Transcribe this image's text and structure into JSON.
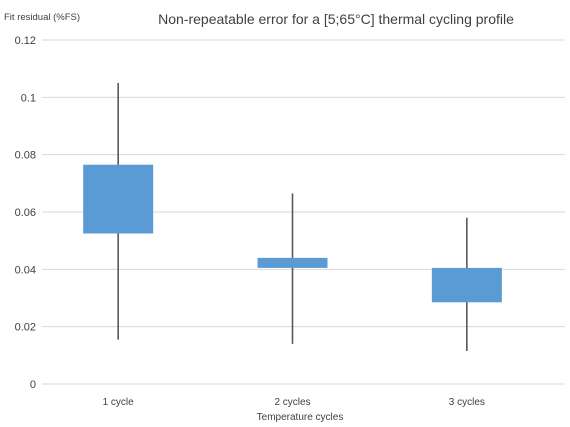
{
  "chart_data": {
    "type": "box",
    "title": "Non-repeatable error for a [5;65°C] thermal cycling profile",
    "ylabel": "Fit residual (%FS)",
    "xlabel": "Temperature cycles",
    "ylim": [
      0,
      0.12
    ],
    "yticks": [
      {
        "value": 0,
        "label": "0"
      },
      {
        "value": 0.02,
        "label": "0.02"
      },
      {
        "value": 0.04,
        "label": "0.04"
      },
      {
        "value": 0.06,
        "label": "0.06"
      },
      {
        "value": 0.08,
        "label": "0.08"
      },
      {
        "value": 0.1,
        "label": "0.1"
      },
      {
        "value": 0.12,
        "label": "0.12"
      }
    ],
    "grid": true,
    "categories": [
      "1 cycle",
      "2 cycles",
      "3 cycles"
    ],
    "boxes": [
      {
        "min": 0.0155,
        "q1": 0.0525,
        "q3": 0.0765,
        "max": 0.105
      },
      {
        "min": 0.014,
        "q1": 0.0405,
        "q3": 0.044,
        "max": 0.0665
      },
      {
        "min": 0.0115,
        "q1": 0.0285,
        "q3": 0.0405,
        "max": 0.058
      }
    ],
    "colors": {
      "box": "#5b9bd5",
      "whisker": "#595959",
      "grid": "#d9d9d9",
      "text": "#404040"
    }
  }
}
